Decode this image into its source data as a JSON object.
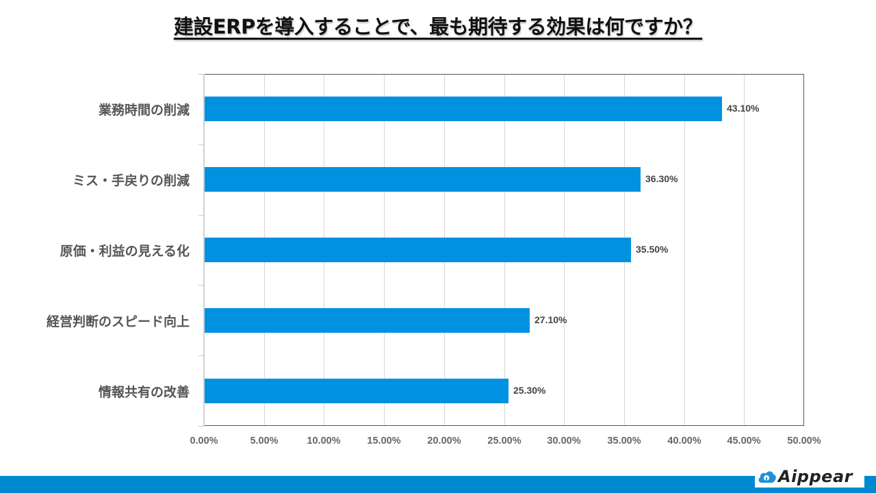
{
  "title": "建設ERPを導入することで、最も期待する効果は何ですか？",
  "colors": {
    "bar": "#0092e0",
    "footer": "#0089d1",
    "logo_icon": "#1e90d8"
  },
  "logo": {
    "text": "Aippear",
    "icon": "cloud-icon"
  },
  "chart_data": {
    "type": "bar",
    "orientation": "horizontal",
    "title": "建設ERPを導入することで、最も期待する効果は何ですか？",
    "categories": [
      "業務時間の削減",
      "ミス・手戻りの削減",
      "原価・利益の見える化",
      "経営判断のスピード向上",
      "情報共有の改善"
    ],
    "values": [
      43.1,
      36.3,
      35.5,
      27.1,
      25.3
    ],
    "value_labels": [
      "43.10%",
      "36.30%",
      "35.50%",
      "27.10%",
      "25.30%"
    ],
    "xlabel": "",
    "ylabel": "",
    "xlim": [
      0,
      50
    ],
    "x_ticks": [
      "0.00%",
      "5.00%",
      "10.00%",
      "15.00%",
      "20.00%",
      "25.00%",
      "30.00%",
      "35.00%",
      "40.00%",
      "45.00%",
      "50.00%"
    ],
    "grid": true,
    "legend": "none"
  }
}
